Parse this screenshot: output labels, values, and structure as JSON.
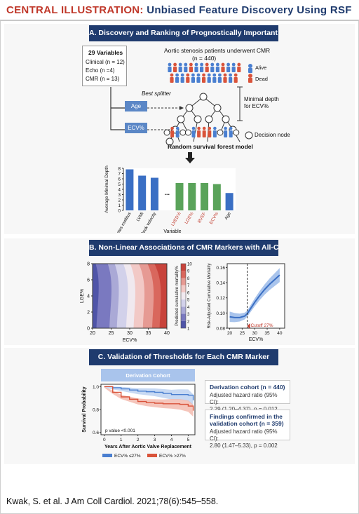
{
  "header": {
    "central": "CENTRAL ILLUSTRATION:",
    "title": "Unbiased Feature Discovery Using RSF"
  },
  "sectionA": {
    "title": "A. Discovery and Ranking of Prognostically Important CMR Markers",
    "vars_title": "29 Variables",
    "vars": [
      "Clinical (n = 12)",
      "Echo (n =4)",
      "CMR (n = 13)"
    ],
    "patients_line1": "Aortic stenosis patients underwent CMR",
    "patients_line2": "(n = 440)",
    "alive": "Alive",
    "dead": "Dead",
    "best_splitter": "Best splitter",
    "age": "Age",
    "ecv": "ECV%",
    "min_depth_1": "Minimal depth",
    "min_depth_2": "for ECV%",
    "decision_node": "Decision node",
    "rsf_label": "Random survival forest model"
  },
  "sectionB": {
    "title": "B. Non-Linear Associations of CMR Markers with All-Cause Death",
    "cutoff": "Cutoff 27%"
  },
  "sectionC": {
    "title": "C. Validation of Thresholds for Each CMR Marker",
    "derivation_label": "Derivation Cohort",
    "pvalue": "p value <0.001",
    "bullet1_title": "Derivation cohort (n = 440)",
    "bullet1_text1": "Adjusted hazard ratio (95% CI):",
    "bullet1_text2": "2.29 (1.20–4.37), p = 0.012",
    "bullet2_title1": "Findings confirmed in the",
    "bullet2_title2": "validation cohort (n = 359)",
    "bullet2_text1": "Adjusted hazard ratio (95% CI):",
    "bullet2_text2": "2.80 (1.47–5.33), p = 0.002"
  },
  "footer": "Kwak, S. et al. J Am Coll Cardiol. 2021;78(6):545–558.",
  "colors": {
    "navy": "#1f3b6e",
    "red": "#c0392b",
    "blue_bar": "#3a6fc4",
    "green_bar": "#5aa35a",
    "survival_blue": "#4a7fd0",
    "survival_red": "#d9533a"
  },
  "chart_data": [
    {
      "type": "bar",
      "categories": [
        "Diabetes mellitus",
        "LVMi",
        "Peak velocity",
        "...",
        "LVEDVi",
        "LGE%",
        "RVEF",
        "ECV%",
        "Age"
      ],
      "values": [
        7.8,
        6.6,
        6.2,
        null,
        5.2,
        5.2,
        5.2,
        5.0,
        3.3
      ],
      "colors": [
        "blue",
        "blue",
        "blue",
        null,
        "green",
        "green",
        "green",
        "green",
        "blue"
      ],
      "red_labels": [
        "LVEDVi",
        "LGE%",
        "RVEF",
        "ECV%"
      ],
      "xlabel": "Variable",
      "ylabel": "Average Minimal Depth",
      "ylim": [
        0,
        8
      ],
      "yticks": [
        0,
        1,
        2,
        3,
        4,
        5,
        6,
        7,
        8
      ]
    },
    {
      "type": "heatmap",
      "xlabel": "ECV%",
      "ylabel": "LGE%",
      "xticks": [
        20,
        25,
        30,
        35,
        40
      ],
      "yticks": [
        0,
        2,
        4,
        6,
        8
      ],
      "colorbar_label": "Predicted cumulative mortality%",
      "colorbar_ticks": [
        1,
        2,
        3,
        4,
        5,
        6,
        7,
        8,
        9,
        10
      ]
    },
    {
      "type": "line",
      "xlabel": "ECV%",
      "ylabel": "Risk-Adjusted Cumulative Mortality",
      "x": [
        20,
        22,
        24,
        26,
        27,
        28,
        30,
        32,
        34,
        36,
        38,
        40
      ],
      "y": [
        0.095,
        0.094,
        0.094,
        0.096,
        0.099,
        0.104,
        0.114,
        0.123,
        0.131,
        0.138,
        0.144,
        0.15
      ],
      "xticks": [
        20,
        25,
        30,
        35,
        40
      ],
      "yticks": [
        0.08,
        0.1,
        0.12,
        0.14,
        0.16
      ],
      "ylim": [
        0.08,
        0.165
      ],
      "xlim": [
        19,
        42
      ],
      "cutoff": 27
    },
    {
      "type": "line",
      "title": "Derivation Cohort",
      "xlabel": "Years After Aortic Valve Replacement",
      "ylabel": "Survival Probability",
      "xticks": [
        0,
        1,
        2,
        3,
        4,
        5
      ],
      "yticks": [
        0.6,
        0.8,
        1.0
      ],
      "ylim": [
        0.58,
        1.02
      ],
      "series": [
        {
          "name": "ECV% ≤27%",
          "x": [
            0,
            0.5,
            1,
            1.5,
            2,
            2.5,
            3,
            3.5,
            4,
            4.5,
            5,
            5.3
          ],
          "y": [
            1.0,
            0.99,
            0.98,
            0.97,
            0.96,
            0.955,
            0.95,
            0.94,
            0.93,
            0.93,
            0.925,
            0.88
          ]
        },
        {
          "name": "ECV% >27%",
          "x": [
            0,
            0.5,
            1,
            1.5,
            2,
            2.5,
            3,
            3.5,
            4,
            4.5,
            5,
            5.3
          ],
          "y": [
            1.0,
            0.95,
            0.91,
            0.89,
            0.87,
            0.86,
            0.855,
            0.85,
            0.85,
            0.845,
            0.83,
            0.79
          ]
        }
      ]
    }
  ]
}
